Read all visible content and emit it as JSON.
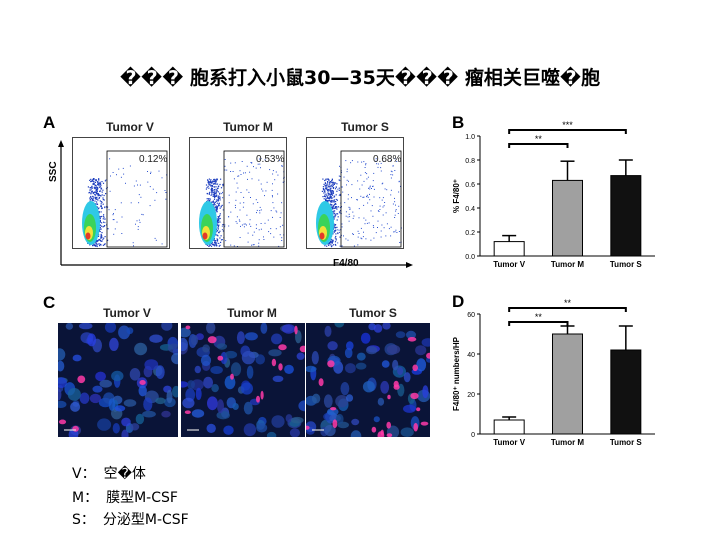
{
  "title": "��� 胞系打入小鼠30—35天��� 瘤相关巨噬�胞",
  "panels": {
    "a": {
      "label": "A",
      "groups": [
        "Tumor V",
        "Tumor M",
        "Tumor S"
      ],
      "percents": [
        "0.12%",
        "0.53%",
        "0.68%"
      ],
      "ylabel": "SSC",
      "xlabel": "F4/80"
    },
    "c": {
      "label": "C",
      "groups": [
        "Tumor V",
        "Tumor M",
        "Tumor S"
      ]
    },
    "b": {
      "label": "B",
      "sig_outer": "***",
      "sig_inner": "**"
    },
    "d": {
      "label": "D",
      "sig_outer": "**",
      "sig_inner": "**"
    }
  },
  "chart_data": [
    {
      "type": "bar",
      "categories": [
        "Tumor V",
        "Tumor M",
        "Tumor S"
      ],
      "values": [
        0.12,
        0.63,
        0.67
      ],
      "errors": [
        0.05,
        0.16,
        0.13
      ],
      "colors": [
        "#ffffff",
        "#a0a0a0",
        "#111111"
      ],
      "ylabel": "% F4/80⁺",
      "ylim": [
        0,
        1.0
      ],
      "yticks": [
        "0.0",
        "0.2",
        "0.4",
        "0.6",
        "0.8",
        "1.0"
      ]
    },
    {
      "type": "bar",
      "categories": [
        "Tumor V",
        "Tumor M",
        "Tumor S"
      ],
      "values": [
        7,
        50,
        42
      ],
      "errors": [
        1.5,
        4,
        12
      ],
      "colors": [
        "#ffffff",
        "#a0a0a0",
        "#111111"
      ],
      "ylabel": "F4/80⁺ numbers/HP",
      "ylim": [
        0,
        60
      ],
      "yticks": [
        "0",
        "20",
        "40",
        "60"
      ]
    }
  ],
  "legend": [
    {
      "key": "V：",
      "text": "空�体"
    },
    {
      "key": "M：",
      "text": "膜型M-CSF"
    },
    {
      "key": "S：",
      "text": "分泌型M-CSF"
    }
  ]
}
